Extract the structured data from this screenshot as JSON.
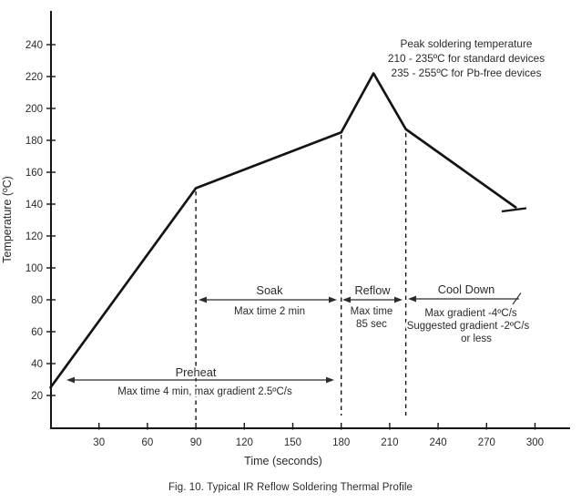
{
  "figure": {
    "caption": "Fig. 10. Typical IR Reflow Soldering Thermal Profile"
  },
  "colors": {
    "ink": "#2b2b2b",
    "line": "#141414",
    "background": "#ffffff"
  },
  "chart_data": {
    "type": "line",
    "title": "Typical IR Reflow Soldering Thermal Profile",
    "xlabel": "Time (seconds)",
    "ylabel": "Temperature (ºC)",
    "x_ticks": [
      30,
      60,
      90,
      120,
      150,
      180,
      210,
      240,
      270,
      300
    ],
    "y_ticks": [
      20,
      40,
      60,
      80,
      100,
      120,
      140,
      160,
      180,
      200,
      220,
      240
    ],
    "xlim": [
      0,
      322
    ],
    "ylim": [
      16,
      262
    ],
    "grid": false,
    "legend": "none",
    "series": [
      {
        "name": "thermal profile",
        "points": [
          [
            0,
            25
          ],
          [
            90,
            150
          ],
          [
            180,
            185
          ],
          [
            200,
            222
          ],
          [
            220,
            187
          ],
          [
            288,
            138
          ]
        ]
      }
    ],
    "phase_boundaries_sec": [
      90,
      180,
      220
    ],
    "line_continues_after_sec": 288
  },
  "annotations": {
    "peak_note": {
      "lines": [
        "Peak soldering temperature",
        "210 - 235ºC for standard devices",
        "235 - 255ºC for Pb-free devices"
      ]
    },
    "phases": [
      {
        "id": "preheat",
        "label": "Preheat",
        "details": [
          "Max time 4 min, max gradient 2.5ºC/s"
        ]
      },
      {
        "id": "soak",
        "label": "Soak",
        "details": [
          "Max time 2 min"
        ]
      },
      {
        "id": "reflow",
        "label": "Reflow",
        "details": [
          "Max time",
          "85 sec"
        ]
      },
      {
        "id": "cooldown",
        "label": "Cool Down",
        "details": [
          "Max gradient -4ºC/s",
          "Suggested gradient -2ºC/s",
          "or less"
        ]
      }
    ]
  }
}
